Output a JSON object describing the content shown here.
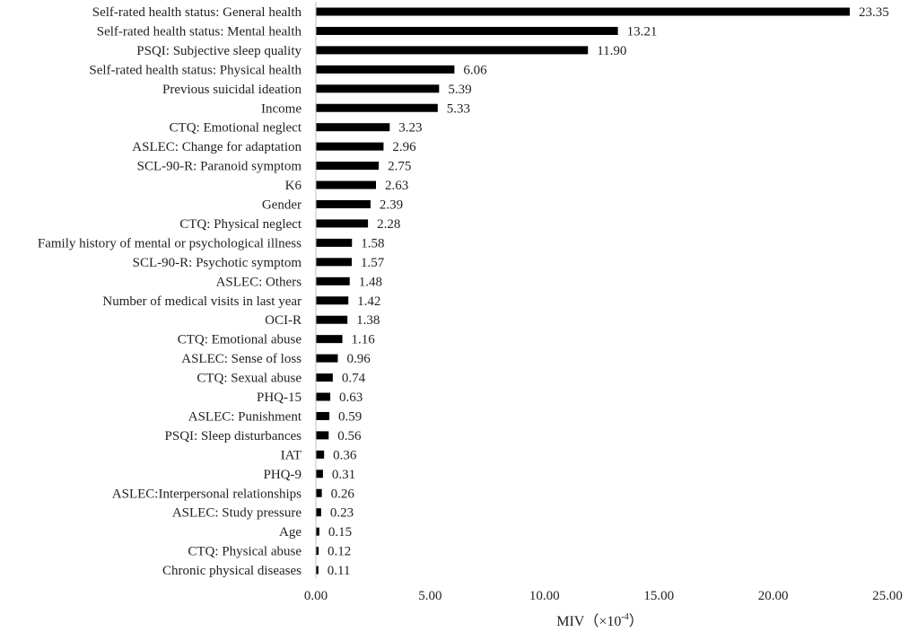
{
  "chart_data": {
    "type": "bar",
    "orientation": "horizontal",
    "categories": [
      "Self-rated health status: General health",
      "Self-rated health status: Mental health",
      "PSQI: Subjective sleep quality",
      "Self-rated health status: Physical health",
      "Previous suicidal ideation",
      "Income",
      "CTQ: Emotional neglect",
      "ASLEC: Change for adaptation",
      "SCL-90-R: Paranoid symptom",
      "K6",
      "Gender",
      "CTQ: Physical neglect",
      "Family history of mental or psychological illness",
      "SCL-90-R: Psychotic symptom",
      "ASLEC: Others",
      "Number of medical visits in last year",
      "OCI-R",
      "CTQ: Emotional abuse",
      "ASLEC: Sense of loss",
      "CTQ: Sexual abuse",
      "PHQ-15",
      "ASLEC: Punishment",
      "PSQI: Sleep disturbances",
      "IAT",
      "PHQ-9",
      "ASLEC:Interpersonal relationships",
      "ASLEC: Study pressure",
      "Age",
      "CTQ: Physical abuse",
      "Chronic physical diseases"
    ],
    "values": [
      23.35,
      13.21,
      11.9,
      6.06,
      5.39,
      5.33,
      3.23,
      2.96,
      2.75,
      2.63,
      2.39,
      2.28,
      1.58,
      1.57,
      1.48,
      1.42,
      1.38,
      1.16,
      0.96,
      0.74,
      0.63,
      0.59,
      0.56,
      0.36,
      0.31,
      0.26,
      0.23,
      0.15,
      0.12,
      0.11
    ],
    "value_labels": [
      "23.35",
      "13.21",
      "11.90",
      "6.06",
      "5.39",
      "5.33",
      "3.23",
      "2.96",
      "2.75",
      "2.63",
      "2.39",
      "2.28",
      "1.58",
      "1.57",
      "1.48",
      "1.42",
      "1.38",
      "1.16",
      "0.96",
      "0.74",
      "0.63",
      "0.59",
      "0.56",
      "0.36",
      "0.31",
      "0.26",
      "0.23",
      "0.15",
      "0.12",
      "0.11"
    ],
    "x_ticks": [
      0,
      5,
      10,
      15,
      20,
      25
    ],
    "x_tick_labels": [
      "0.00",
      "5.00",
      "10.00",
      "15.00",
      "20.00",
      "25.00"
    ],
    "xlim": [
      0,
      25
    ],
    "xlabel": "MIV（×10",
    "xlabel_superscript": "-4",
    "xlabel_suffix": "）",
    "bar_color": "#000000",
    "grid": false,
    "legend": "none"
  }
}
